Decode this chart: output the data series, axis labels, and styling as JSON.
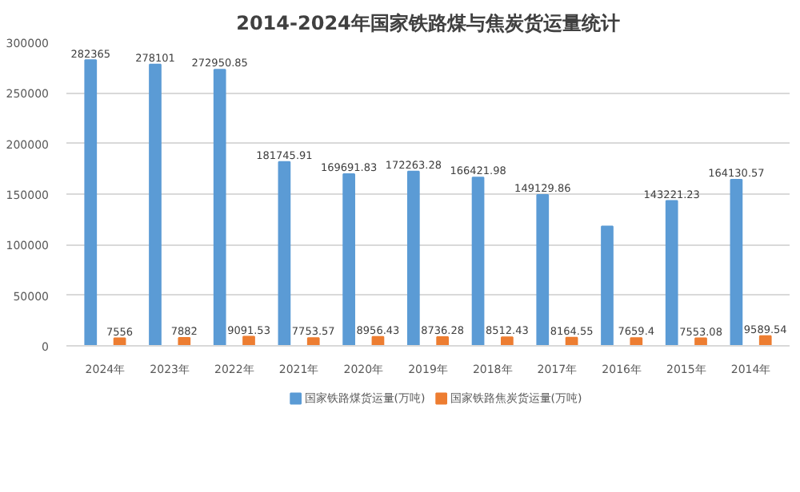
{
  "chart_data": {
    "type": "bar",
    "title": "2014-2024年国家铁路煤与焦炭货运量统计",
    "categories": [
      "2024年",
      "2023年",
      "2022年",
      "2021年",
      "2020年",
      "2019年",
      "2018年",
      "2017年",
      "2016年",
      "2015年",
      "2014年"
    ],
    "series": [
      {
        "name": "国家铁路煤货运量(万吨)",
        "color": "#5b9bd5",
        "values": [
          282365,
          278101,
          272950.85,
          181745.91,
          169691.83,
          172263.28,
          166421.98,
          149129.86,
          118000,
          143221.23,
          164130.57
        ],
        "value_labels": [
          "282365",
          "278101",
          "272950.85",
          "181745.91",
          "169691.83",
          "172263.28",
          "166421.98",
          "149129.86",
          null,
          "143221.23",
          "164130.57"
        ]
      },
      {
        "name": "国家铁路焦炭货运量(万吨)",
        "color": "#ed7d31",
        "values": [
          7556,
          7882,
          9091.53,
          7753.57,
          8956.43,
          8736.28,
          8512.43,
          8164.55,
          7659.4,
          7553.08,
          9589.54
        ],
        "value_labels": [
          "7556",
          "7882",
          "9091.53",
          "7753.57",
          "8956.43",
          "8736.28",
          "8512.43",
          "8164.55",
          "7659.4",
          "7553.08",
          "9589.54"
        ]
      }
    ],
    "ylim": [
      0,
      300000
    ],
    "yticks": [
      0,
      50000,
      100000,
      150000,
      200000,
      250000,
      300000
    ],
    "grid": "y",
    "legend": "bottom"
  }
}
